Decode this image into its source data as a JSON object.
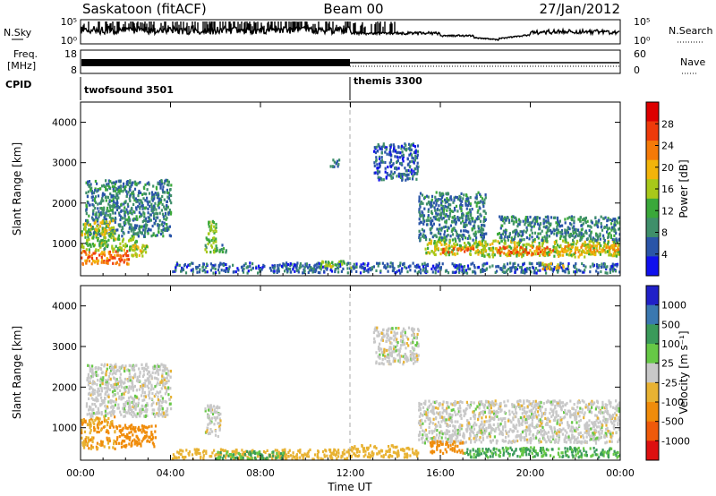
{
  "header": {
    "station": "Saskatoon (fitACF)",
    "beam": "Beam 00",
    "date": "27/Jan/2012"
  },
  "noise_panel": {
    "left_label": "N.Sky",
    "right_label": "N.Search",
    "left_ticks": [
      "10^5",
      "10^0"
    ],
    "right_ticks": [
      "10^5",
      "10^0"
    ]
  },
  "freq_panel": {
    "left_label_1": "Freq.",
    "left_label_2": "[MHz]",
    "right_label": "Nave",
    "left_ticks": [
      "18",
      "8"
    ],
    "right_ticks": [
      "60",
      "0"
    ]
  },
  "cpid_panel": {
    "label": "CPID",
    "programs": [
      {
        "name": "twofsound 3501",
        "start_hour": 0
      },
      {
        "name": "themis 3300",
        "start_hour": 12
      }
    ]
  },
  "x_axis": {
    "label": "Time UT",
    "ticks": [
      "00:00",
      "04:00",
      "08:00",
      "12:00",
      "16:00",
      "20:00",
      "00:00"
    ]
  },
  "colors": {
    "power_scale": [
      "#1010ee",
      "#2a55a8",
      "#3f8f6a",
      "#3aa83a",
      "#a8c81a",
      "#f2b40a",
      "#f57a08",
      "#ee3a0a",
      "#dd0000"
    ],
    "velocity_scale": [
      "#2020c8",
      "#3a78b0",
      "#3a9a5a",
      "#66c846",
      "#c8c8c8",
      "#e8b232",
      "#f08c0a",
      "#ef5a0a",
      "#dd1010"
    ]
  },
  "chart_data": [
    {
      "type": "heatmap",
      "title": "Power",
      "xlabel": "Time UT",
      "ylabel": "Slant Range [km]",
      "xlim": [
        0,
        24
      ],
      "ylim": [
        200,
        4500
      ],
      "yticks": [
        "1000",
        "2000",
        "3000",
        "4000"
      ],
      "colorbar_label": "Power [dB]",
      "colorbar_ticks": [
        "4",
        "8",
        "12",
        "16",
        "20",
        "24",
        "28"
      ],
      "colorbar_range": [
        0,
        32
      ],
      "regions": [
        {
          "t0": 0.0,
          "t1": 2.2,
          "r0": 500,
          "r1": 850,
          "value": 24
        },
        {
          "t0": 0.0,
          "t1": 2.5,
          "r0": 850,
          "r1": 1200,
          "value": 14
        },
        {
          "t0": 0.2,
          "t1": 4.0,
          "r0": 1200,
          "r1": 2600,
          "value": 8
        },
        {
          "t0": 0.0,
          "t1": 1.5,
          "r0": 1200,
          "r1": 1600,
          "value": 16
        },
        {
          "t0": 2.2,
          "t1": 3.0,
          "r0": 700,
          "r1": 1000,
          "value": 18
        },
        {
          "t0": 5.5,
          "t1": 6.0,
          "r0": 800,
          "r1": 1600,
          "value": 14
        },
        {
          "t0": 6.0,
          "t1": 6.5,
          "r0": 800,
          "r1": 1000,
          "value": 10
        },
        {
          "t0": 4.0,
          "t1": 12.0,
          "r0": 300,
          "r1": 550,
          "value": 6
        },
        {
          "t0": 10.5,
          "t1": 12.0,
          "r0": 420,
          "r1": 600,
          "value": 14
        },
        {
          "t0": 11.0,
          "t1": 11.5,
          "r0": 2900,
          "r1": 3100,
          "value": 6
        },
        {
          "t0": 13.0,
          "t1": 15.0,
          "r0": 2600,
          "r1": 3500,
          "value": 6
        },
        {
          "t0": 15.0,
          "t1": 18.0,
          "r0": 1100,
          "r1": 2300,
          "value": 8
        },
        {
          "t0": 15.3,
          "t1": 18.0,
          "r0": 750,
          "r1": 1100,
          "value": 16
        },
        {
          "t0": 16.0,
          "t1": 17.5,
          "r0": 800,
          "r1": 950,
          "value": 24
        },
        {
          "t0": 17.5,
          "t1": 24.0,
          "r0": 700,
          "r1": 1100,
          "value": 16
        },
        {
          "t0": 18.5,
          "t1": 24.0,
          "r0": 1100,
          "r1": 1700,
          "value": 8
        },
        {
          "t0": 18.5,
          "t1": 21.0,
          "r0": 750,
          "r1": 950,
          "value": 24
        },
        {
          "t0": 21.0,
          "t1": 24.0,
          "r0": 800,
          "r1": 1000,
          "value": 20
        },
        {
          "t0": 12.0,
          "t1": 24.0,
          "r0": 300,
          "r1": 550,
          "value": 6
        },
        {
          "t0": 20.5,
          "t1": 21.5,
          "r0": 400,
          "r1": 550,
          "value": 18
        }
      ]
    },
    {
      "type": "heatmap",
      "title": "Velocity",
      "xlabel": "Time UT",
      "ylabel": "Slant Range [km]",
      "xlim": [
        0,
        24
      ],
      "ylim": [
        200,
        4500
      ],
      "yticks": [
        "1000",
        "2000",
        "3000",
        "4000"
      ],
      "colorbar_label": "Velocity [m s^-1]",
      "colorbar_ticks": [
        "1000",
        "500",
        "100",
        "25",
        "-25",
        "-100",
        "-500",
        "-1000"
      ],
      "regions": [
        {
          "t0": 0.0,
          "t1": 1.5,
          "r0": 500,
          "r1": 800,
          "value": -100
        },
        {
          "t0": 1.5,
          "t1": 3.3,
          "r0": 550,
          "r1": 1100,
          "value": -300
        },
        {
          "t0": 0.0,
          "t1": 1.5,
          "r0": 900,
          "r1": 1300,
          "value": -100
        },
        {
          "t0": 0.2,
          "t1": 4.0,
          "r0": 1300,
          "r1": 2600,
          "value": 0
        },
        {
          "t0": 5.5,
          "t1": 6.2,
          "r0": 800,
          "r1": 1600,
          "value": 0
        },
        {
          "t0": 4.0,
          "t1": 12.0,
          "r0": 250,
          "r1": 500,
          "value": -60
        },
        {
          "t0": 6.0,
          "t1": 9.0,
          "r0": 250,
          "r1": 450,
          "value": 60
        },
        {
          "t0": 13.0,
          "t1": 15.0,
          "r0": 2600,
          "r1": 3500,
          "value": 0
        },
        {
          "t0": 15.0,
          "t1": 24.0,
          "r0": 650,
          "r1": 1700,
          "value": 0
        },
        {
          "t0": 15.5,
          "t1": 17.0,
          "r0": 400,
          "r1": 700,
          "value": -200
        },
        {
          "t0": 12.0,
          "t1": 15.0,
          "r0": 300,
          "r1": 600,
          "value": -60
        },
        {
          "t0": 17.0,
          "t1": 24.0,
          "r0": 300,
          "r1": 550,
          "value": 60
        }
      ]
    }
  ]
}
